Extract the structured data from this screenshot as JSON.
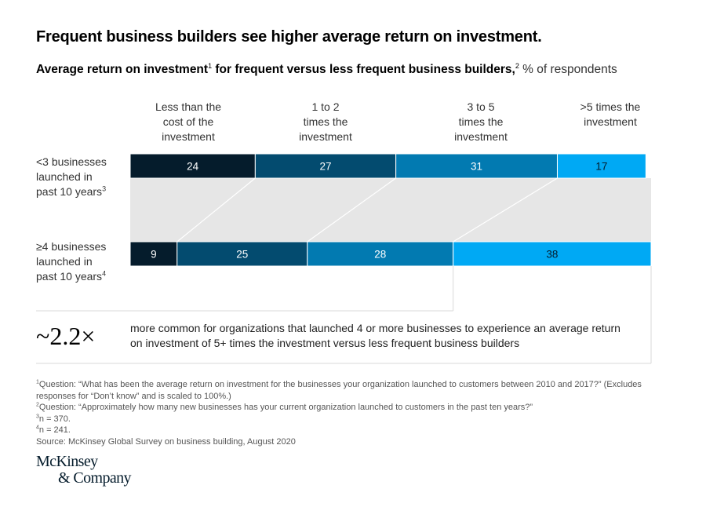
{
  "header": {
    "title": "Frequent business builders see higher average return on investment.",
    "subtitle_bold_1": "Average return on investment",
    "subtitle_sup_1": "1",
    "subtitle_bold_2": " for frequent versus less frequent business builders,",
    "subtitle_sup_2": "2",
    "subtitle_unit": " % of respondents"
  },
  "colors": {
    "seg1": "#051c2c",
    "seg2": "#034b6f",
    "seg3": "#027ab1",
    "seg4": "#00a9f4",
    "band": "#e6e6e6",
    "rule": "#d9d9d9"
  },
  "chart_data": {
    "type": "bar",
    "orientation": "horizontal-stacked-100",
    "title": "Average return on investment for frequent versus less frequent business builders",
    "unit": "% of respondents",
    "categories": [
      "Less than the\ncost of the\ninvestment",
      "1 to 2\ntimes the\ninvestment",
      "3 to 5\ntimes the\ninvestment",
      ">5 times the\ninvestment"
    ],
    "rows": [
      {
        "label": "<3 businesses\nlaunched in\npast 10 years",
        "footnote": "3"
      },
      {
        "label": "≥4 businesses\nlaunched in\npast 10 years",
        "footnote": "4"
      }
    ],
    "series": [
      {
        "name": "<3 businesses launched in past 10 years",
        "values": [
          24,
          27,
          31,
          17
        ]
      },
      {
        "name": "≥4 businesses launched in past 10 years",
        "values": [
          9,
          25,
          28,
          38
        ]
      }
    ],
    "xlim": [
      0,
      100
    ],
    "grid": false,
    "legend": "top (category labels above segments)"
  },
  "callout": {
    "value": "~2.2×",
    "text": "more common for organizations that launched 4 or more businesses to experience an average return on investment of 5+ times the investment versus less frequent business builders"
  },
  "footnotes": [
    {
      "mark": "1",
      "text": "Question: “What has been the average return on investment for the businesses your organization launched to customers between 2010 and 2017?” (Excludes responses for “Don’t know” and is scaled to 100%.)"
    },
    {
      "mark": "2",
      "text": "Question: “Approximately how many new businesses has your current organization launched to customers in the past ten years?”"
    },
    {
      "mark": "3",
      "text": "n = 370."
    },
    {
      "mark": "4",
      "text": "n = 241."
    },
    {
      "mark": "",
      "text": "Source: McKinsey Global Survey on business building, August 2020"
    }
  ],
  "logo": {
    "line1": "McKinsey",
    "line2": "& Company"
  }
}
